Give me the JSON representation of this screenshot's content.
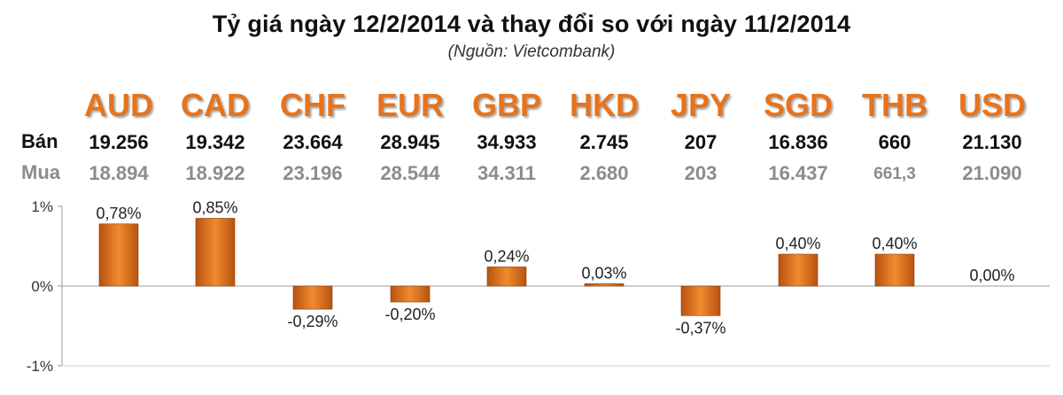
{
  "title": "Tỷ giá ngày 12/2/2014 và thay đổi so với ngày 11/2/2014",
  "subtitle": "(Nguồn: Vietcombank)",
  "row_labels": {
    "sell": "Bán",
    "buy": "Mua"
  },
  "rates": [
    {
      "code": "AUD",
      "sell": "19.256",
      "buy": "18.894"
    },
    {
      "code": "CAD",
      "sell": "19.342",
      "buy": "18.922"
    },
    {
      "code": "CHF",
      "sell": "23.664",
      "buy": "23.196"
    },
    {
      "code": "EUR",
      "sell": "28.945",
      "buy": "28.544"
    },
    {
      "code": "GBP",
      "sell": "34.933",
      "buy": "34.311"
    },
    {
      "code": "HKD",
      "sell": "2.745",
      "buy": "2.680"
    },
    {
      "code": "JPY",
      "sell": "207",
      "buy": "203"
    },
    {
      "code": "SGD",
      "sell": "16.836",
      "buy": "16.437"
    },
    {
      "code": "THB",
      "sell": "660",
      "buy": "661,3"
    },
    {
      "code": "USD",
      "sell": "21.130",
      "buy": "21.090"
    }
  ],
  "colors": {
    "accent": "#e8731a",
    "bar_dark": "#b8520f",
    "bar_light": "#f29a4a"
  },
  "chart_data": {
    "type": "bar",
    "categories": [
      "AUD",
      "CAD",
      "CHF",
      "EUR",
      "GBP",
      "HKD",
      "JPY",
      "SGD",
      "THB",
      "USD"
    ],
    "values": [
      0.78,
      0.85,
      -0.29,
      -0.2,
      0.24,
      0.03,
      -0.37,
      0.4,
      0.4,
      0.0
    ],
    "data_labels": [
      "0,78%",
      "0,85%",
      "-0,29%",
      "-0,20%",
      "0,24%",
      "0,03%",
      "-0,37%",
      "0,40%",
      "0,40%",
      "0,00%"
    ],
    "ylim": [
      -1,
      1
    ],
    "yticks": [
      1,
      0,
      -1
    ],
    "ytick_labels": [
      "1%",
      "0%",
      "-1%"
    ],
    "grid": false
  }
}
